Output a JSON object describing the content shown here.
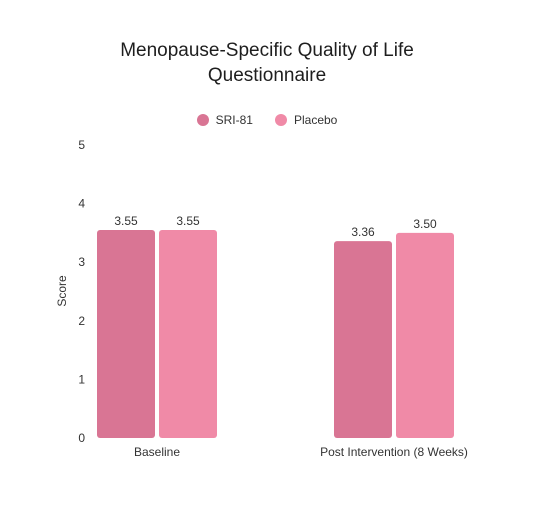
{
  "chart_data": {
    "type": "bar",
    "title_lines": [
      "Menopause-Specific Quality of Life",
      "Questionnaire"
    ],
    "xlabel": "",
    "ylabel": "Score",
    "ylim": [
      0,
      5
    ],
    "yticks": [
      "0",
      "1",
      "2",
      "3",
      "4",
      "5"
    ],
    "categories": [
      "Baseline",
      "Post Intervention (8 Weeks)"
    ],
    "series": [
      {
        "name": "SRI-81",
        "color": "#d97594",
        "values": [
          3.55,
          3.36
        ],
        "labels": [
          "3.55",
          "3.36"
        ]
      },
      {
        "name": "Placebo",
        "color": "#f08aa7",
        "values": [
          3.55,
          3.5
        ],
        "labels": [
          "3.55",
          "3.50"
        ]
      }
    ],
    "legend_position": "top-center",
    "grid": false
  }
}
